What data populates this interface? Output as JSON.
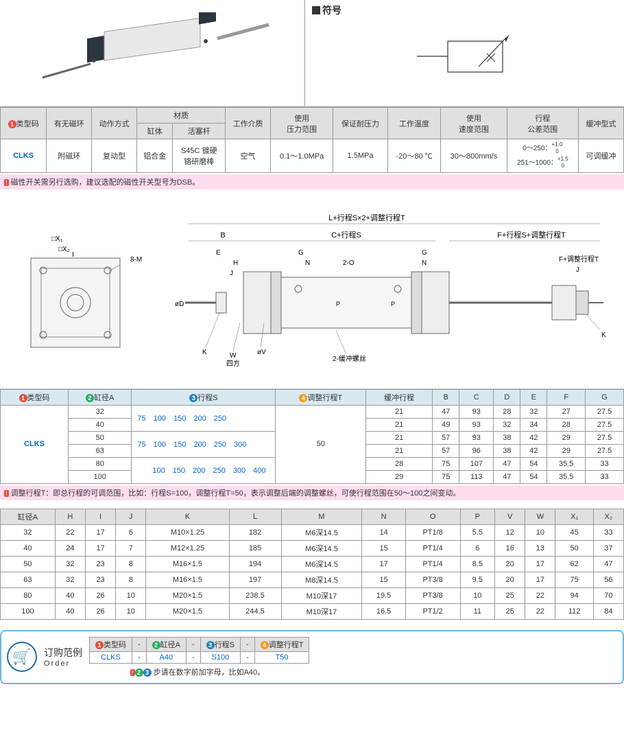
{
  "symbol_label": "符号",
  "table1": {
    "headers": [
      "类型码",
      "有无磁环",
      "动作方式",
      "材质",
      "工作介质",
      "使用\n压力范围",
      "保证耐压力",
      "工作温度",
      "使用\n速度范围",
      "行程\n公差范围",
      "缓冲型式"
    ],
    "sub_headers": [
      "缸体",
      "活塞杆"
    ],
    "row": {
      "type": "CLKS",
      "magnet": "附磁环",
      "action": "复动型",
      "body": "铝合金",
      "rod": "S45C 镀硬\n铬研磨棒",
      "medium": "空气",
      "pressure": "0.1～1.0MPa",
      "proof": "1.5MPa",
      "temp": "-20～80 ℃",
      "speed": "30～800mm/s",
      "tol1": "0～250：",
      "tol1v": "+1.0\n0",
      "tol2": "251～1000：",
      "tol2v": "+1.5\n0",
      "cushion": "可调缓冲"
    }
  },
  "note1": "磁性开关需另行选购，建议选配的磁性开关型号为DSB。",
  "diagram_labels": [
    "L+行程S×2+调整行程T",
    "B",
    "C+行程S",
    "F+行程S+调整行程T",
    "E",
    "G",
    "H",
    "J",
    "N",
    "2-O",
    "F+调整行程T",
    "K",
    "W\n四方",
    "øV",
    "øD",
    "2-缓冲螺丝",
    "□X₁",
    "□X₂",
    "I",
    "8-M",
    "P"
  ],
  "table2": {
    "headers": [
      "类型码",
      "缸径A",
      "行程S",
      "调整行程T",
      "缓冲行程",
      "B",
      "C",
      "D",
      "E",
      "F",
      "G"
    ],
    "type": "CLKS",
    "adjust_t": "50",
    "rows": [
      {
        "bore": "32",
        "strokes": "75　100　150　200　250",
        "cushion": "21",
        "B": "47",
        "C": "93",
        "D": "28",
        "E": "32",
        "F": "27",
        "G": "27.5"
      },
      {
        "bore": "40",
        "strokes": "",
        "cushion": "21",
        "B": "49",
        "C": "93",
        "D": "32",
        "E": "34",
        "F": "28",
        "G": "27.5"
      },
      {
        "bore": "50",
        "strokes": "75　100　150　200　250　300",
        "cushion": "21",
        "B": "57",
        "C": "93",
        "D": "38",
        "E": "42",
        "F": "29",
        "G": "27.5"
      },
      {
        "bore": "63",
        "strokes": "",
        "cushion": "21",
        "B": "57",
        "C": "96",
        "D": "38",
        "E": "42",
        "F": "29",
        "G": "27.5"
      },
      {
        "bore": "80",
        "strokes": "　　100　150　200　250　300　400",
        "cushion": "28",
        "B": "75",
        "C": "107",
        "D": "47",
        "E": "54",
        "F": "35.5",
        "G": "33"
      },
      {
        "bore": "100",
        "strokes": "",
        "cushion": "29",
        "B": "75",
        "C": "113",
        "D": "47",
        "E": "54",
        "F": "35.5",
        "G": "33"
      }
    ]
  },
  "note2": "调整行程T：即总行程的可调范围，比如：行程S=100，调整行程T=50，表示调整后端的调整螺丝，可使行程范围在50～100之间变动。",
  "table3": {
    "headers": [
      "缸径A",
      "H",
      "I",
      "J",
      "K",
      "L",
      "M",
      "N",
      "O",
      "P",
      "V",
      "W",
      "X₁",
      "X₂"
    ],
    "rows": [
      [
        "32",
        "22",
        "17",
        "6",
        "M10×1.25",
        "182",
        "M6深14.5",
        "14",
        "PT1/8",
        "5.5",
        "12",
        "10",
        "45",
        "33"
      ],
      [
        "40",
        "24",
        "17",
        "7",
        "M12×1.25",
        "185",
        "M6深14.5",
        "15",
        "PT1/4",
        "6",
        "16",
        "13",
        "50",
        "37"
      ],
      [
        "50",
        "32",
        "23",
        "8",
        "M16×1.5",
        "194",
        "M6深14.5",
        "17",
        "PT1/4",
        "8.5",
        "20",
        "17",
        "62",
        "47"
      ],
      [
        "63",
        "32",
        "23",
        "8",
        "M16×1.5",
        "197",
        "M8深14.5",
        "15",
        "PT3/8",
        "9.5",
        "20",
        "17",
        "75",
        "56"
      ],
      [
        "80",
        "40",
        "26",
        "10",
        "M20×1.5",
        "238.5",
        "M10深17",
        "19.5",
        "PT3/8",
        "10",
        "25",
        "22",
        "94",
        "70"
      ],
      [
        "100",
        "40",
        "26",
        "10",
        "M20×1.5",
        "244.5",
        "M10深17",
        "16.5",
        "PT1/2",
        "11",
        "25",
        "22",
        "112",
        "84"
      ]
    ]
  },
  "order": {
    "label": "订购范例",
    "label_en": "Order",
    "headers": [
      "类型码",
      "-",
      "缸径A",
      "-",
      "行程S",
      "-",
      "调整行程T"
    ],
    "values": [
      "CLKS",
      "-",
      "A40",
      "-",
      "S100",
      "-",
      "T50"
    ],
    "note": "步请在数字前加字母，比如A40。"
  },
  "colors": {
    "link": "#0066cc",
    "border": "#999",
    "header_bg": "#e0e0e0",
    "t2_header": "#d8e8f0",
    "note_bg": "#fde",
    "order_border": "#6bb5e8"
  }
}
